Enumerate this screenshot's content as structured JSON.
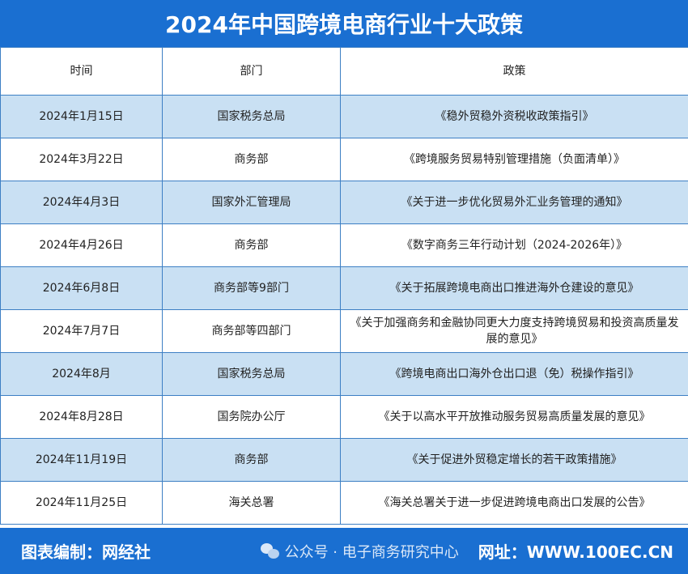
{
  "title": "2024年中国跨境电商行业十大政策",
  "headers": [
    "时间",
    "部门",
    "政策"
  ],
  "rows": [
    {
      "date": "2024年1月15日",
      "dept": "国家税务总局",
      "policy": "《稳外贸稳外资税收政策指引》"
    },
    {
      "date": "2024年3月22日",
      "dept": "商务部",
      "policy": "《跨境服务贸易特别管理措施（负面清单）》"
    },
    {
      "date": "2024年4月3日",
      "dept": "国家外汇管理局",
      "policy": "《关于进一步优化贸易外汇业务管理的通知》"
    },
    {
      "date": "2024年4月26日",
      "dept": "商务部",
      "policy": "《数字商务三年行动计划（2024-2026年）》"
    },
    {
      "date": "2024年6月8日",
      "dept": "商务部等9部门",
      "policy": "《关于拓展跨境电商出口推进海外仓建设的意见》"
    },
    {
      "date": "2024年7月7日",
      "dept": "商务部等四部门",
      "policy": "《关于加强商务和金融协同更大力度支持跨境贸易和投资高质量发展的意见》"
    },
    {
      "date": "2024年8月",
      "dept": "国家税务总局",
      "policy": "《跨境电商出口海外仓出口退（免）税操作指引》"
    },
    {
      "date": "2024年8月28日",
      "dept": "国务院办公厅",
      "policy": "《关于以高水平开放推动服务贸易高质量发展的意见》"
    },
    {
      "date": "2024年11月19日",
      "dept": "商务部",
      "policy": "《关于促进外贸稳定增长的若干政策措施》"
    },
    {
      "date": "2024年11月25日",
      "dept": "海关总署",
      "policy": "《海关总署关于进一步促进跨境电商出口发展的公告》"
    }
  ],
  "footer": {
    "credit": "图表编制：网经社",
    "site": "网址：WWW.100EC.CN",
    "watermark": "公众号 · 电子商务研究中心"
  },
  "colors": {
    "brand": "#1a6fd1",
    "row_alt": "#c9e0f3"
  }
}
